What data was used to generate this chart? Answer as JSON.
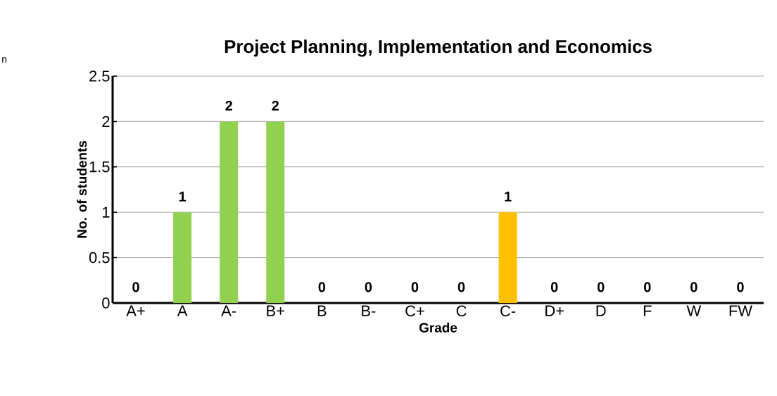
{
  "chart_data": {
    "type": "bar",
    "title": "Project Planning, Implementation and Economics",
    "xlabel": "Grade",
    "ylabel": "No. of students",
    "categories": [
      "A+",
      "A",
      "A-",
      "B+",
      "B",
      "B-",
      "C+",
      "C",
      "C-",
      "D+",
      "D",
      "F",
      "W",
      "FW"
    ],
    "values": [
      0,
      1,
      2,
      2,
      0,
      0,
      0,
      0,
      1,
      0,
      0,
      0,
      0,
      0
    ],
    "colors": [
      "#92d050",
      "#92d050",
      "#92d050",
      "#92d050",
      "#92d050",
      "#92d050",
      "#92d050",
      "#92d050",
      "#ffc000",
      "#92d050",
      "#92d050",
      "#92d050",
      "#92d050",
      "#92d050"
    ],
    "ylim": [
      0,
      2.5
    ],
    "yticks": [
      0,
      0.5,
      1,
      1.5,
      2,
      2.5
    ],
    "grid": "y",
    "data_labels": true,
    "annotations": [
      "n"
    ]
  }
}
